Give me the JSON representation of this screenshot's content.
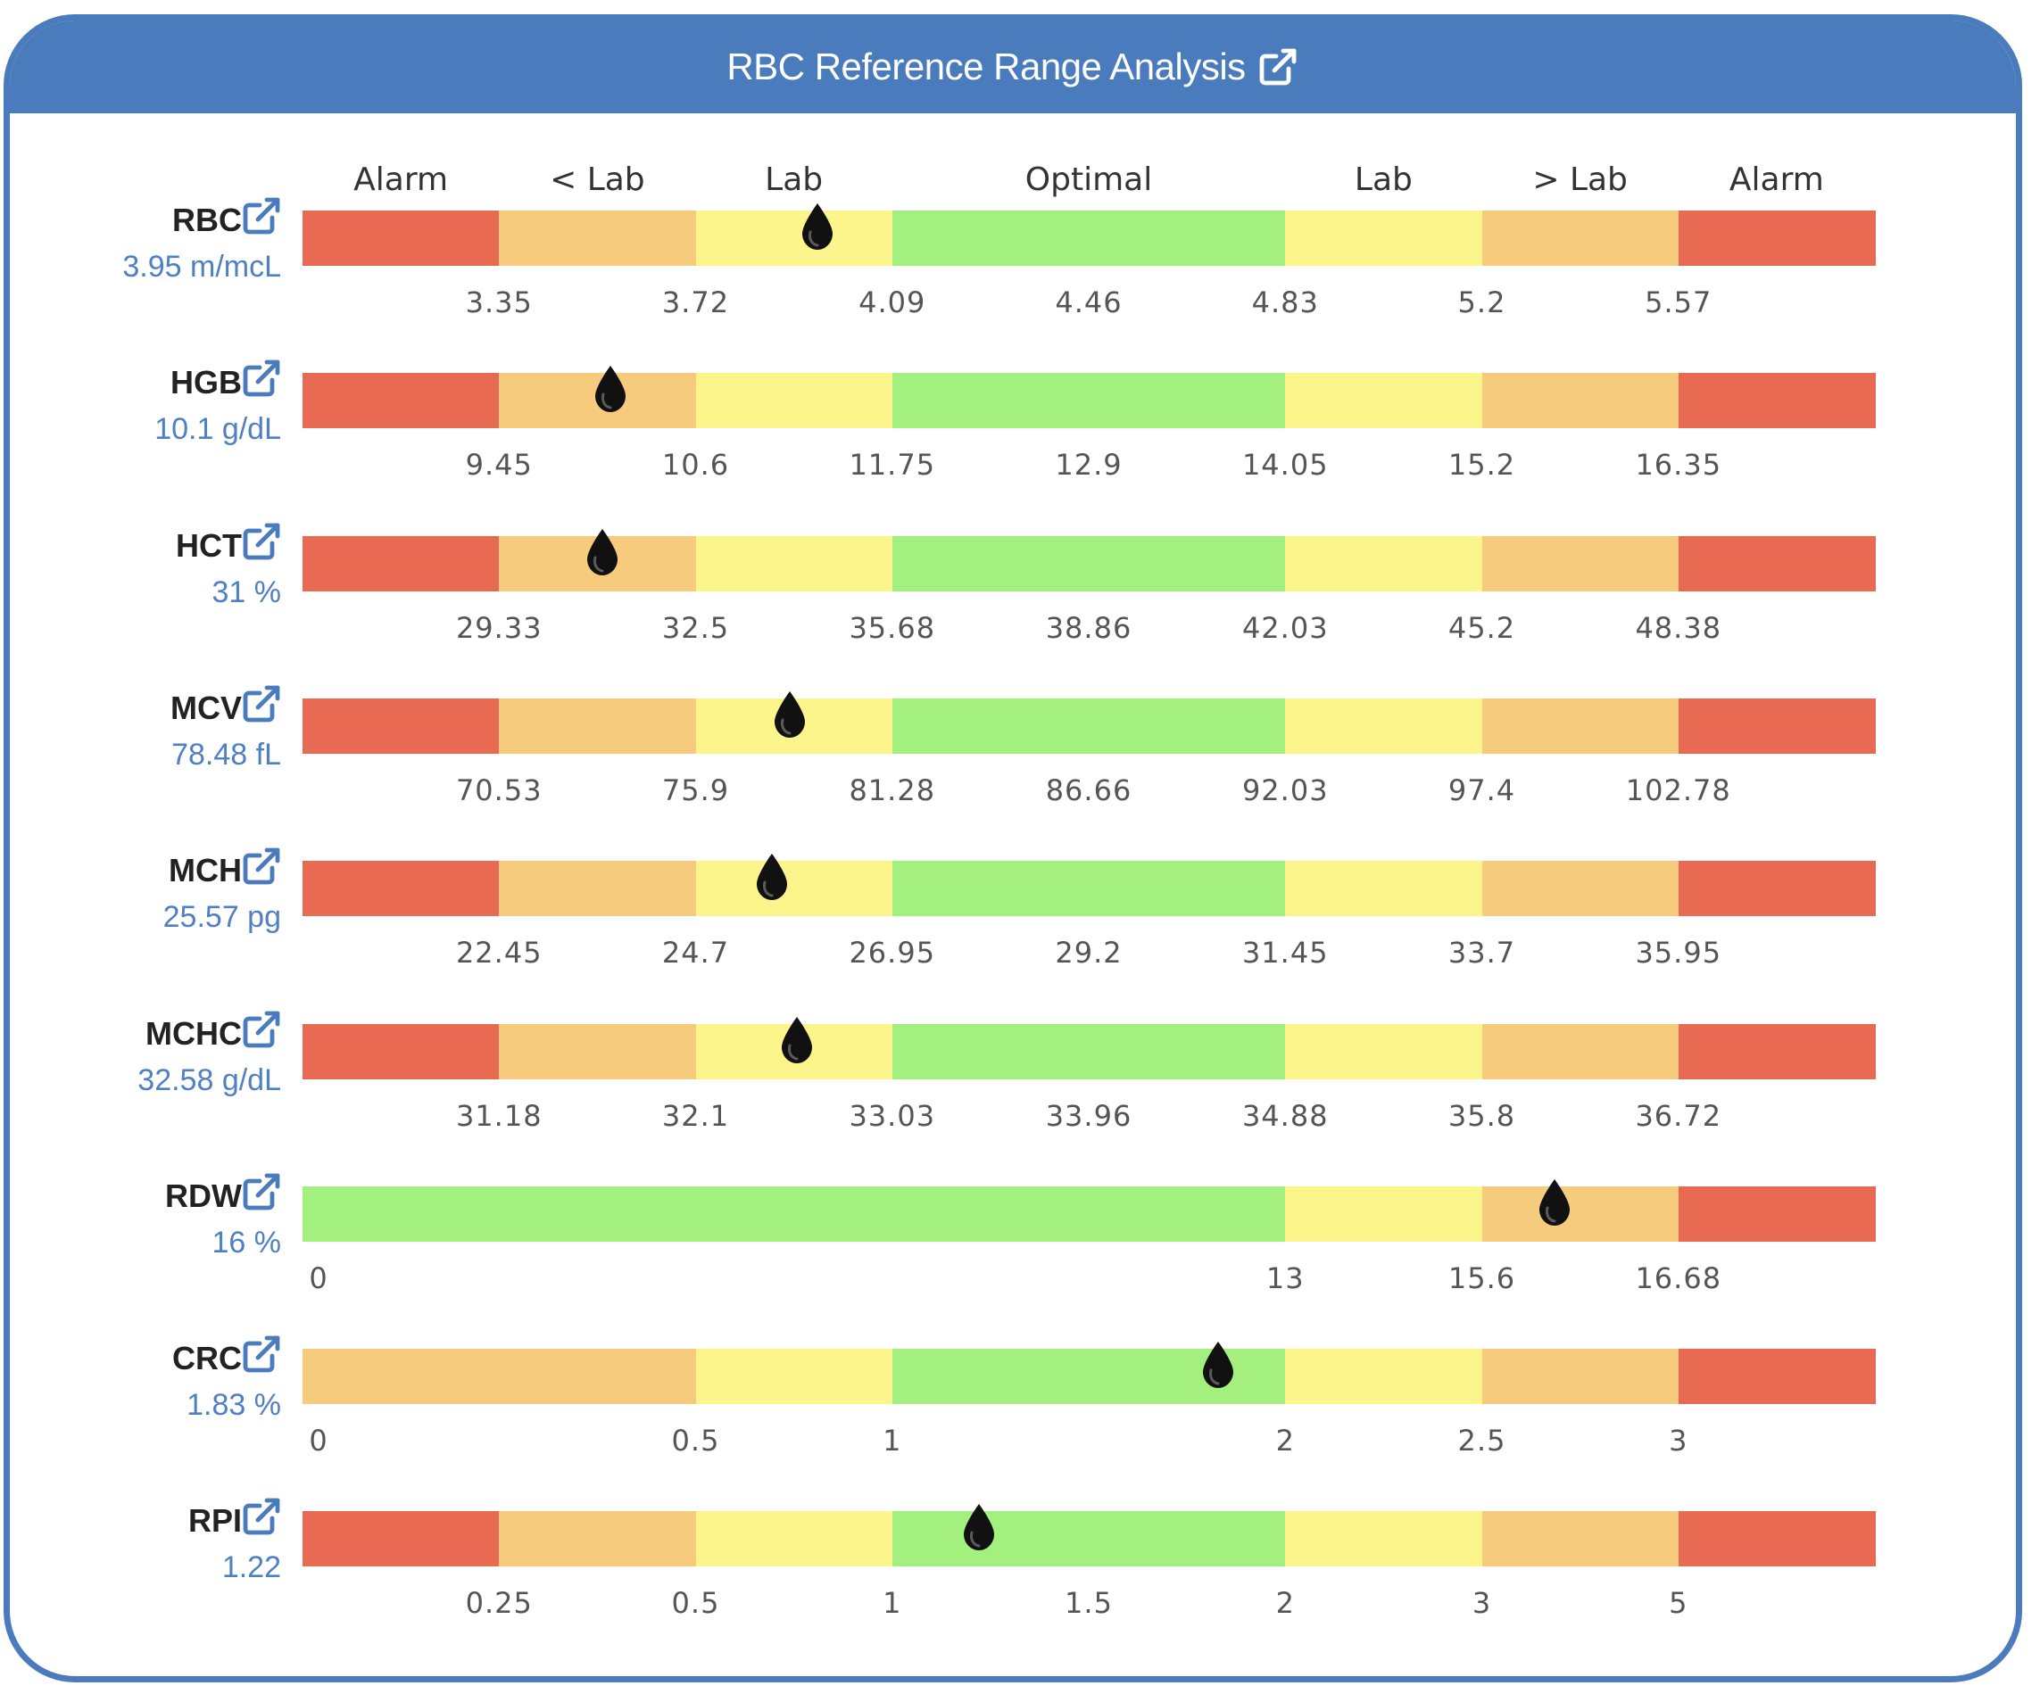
{
  "header": {
    "title": "RBC Reference Range Analysis",
    "link_icon": "external-link-icon"
  },
  "colors": {
    "alarm": "#e96a53",
    "below_lab": "#f6cb7e",
    "lab": "#fcf58c",
    "optimal": "#a3f07e",
    "accent": "#4a7bbd",
    "value_text": "#4f80c4",
    "marker": "#111111"
  },
  "chart_data": {
    "type": "bar",
    "zone_labels": [
      "Alarm",
      "< Lab",
      "Lab",
      "Optimal",
      "Lab",
      "> Lab",
      "Alarm"
    ],
    "legend": "top",
    "rows": [
      {
        "name": "RBC",
        "value_text": "3.95 m/mcL",
        "value": 3.95,
        "ticks": [
          "3.35",
          "3.72",
          "4.09",
          "4.46",
          "4.83",
          "5.2",
          "5.57"
        ],
        "tick_values": [
          3.35,
          3.72,
          4.09,
          4.46,
          4.83,
          5.2,
          5.57
        ]
      },
      {
        "name": "HGB",
        "value_text": "10.1 g/dL",
        "value": 10.1,
        "ticks": [
          "9.45",
          "10.6",
          "11.75",
          "12.9",
          "14.05",
          "15.2",
          "16.35"
        ],
        "tick_values": [
          9.45,
          10.6,
          11.75,
          12.9,
          14.05,
          15.2,
          16.35
        ]
      },
      {
        "name": "HCT",
        "value_text": "31 %",
        "value": 31,
        "ticks": [
          "29.33",
          "32.5",
          "35.68",
          "38.86",
          "42.03",
          "45.2",
          "48.38"
        ],
        "tick_values": [
          29.33,
          32.5,
          35.68,
          38.86,
          42.03,
          45.2,
          48.38
        ]
      },
      {
        "name": "MCV",
        "value_text": "78.48 fL",
        "value": 78.48,
        "ticks": [
          "70.53",
          "75.9",
          "81.28",
          "86.66",
          "92.03",
          "97.4",
          "102.78"
        ],
        "tick_values": [
          70.53,
          75.9,
          81.28,
          86.66,
          92.03,
          97.4,
          102.78
        ]
      },
      {
        "name": "MCH",
        "value_text": "25.57 pg",
        "value": 25.57,
        "ticks": [
          "22.45",
          "24.7",
          "26.95",
          "29.2",
          "31.45",
          "33.7",
          "35.95"
        ],
        "tick_values": [
          22.45,
          24.7,
          26.95,
          29.2,
          31.45,
          33.7,
          35.95
        ]
      },
      {
        "name": "MCHC",
        "value_text": "32.58 g/dL",
        "value": 32.58,
        "ticks": [
          "31.18",
          "32.1",
          "33.03",
          "33.96",
          "34.88",
          "35.8",
          "36.72"
        ],
        "tick_values": [
          31.18,
          32.1,
          33.03,
          33.96,
          34.88,
          35.8,
          36.72
        ]
      },
      {
        "name": "RDW",
        "value_text": "16 %",
        "value": 16,
        "ticks": [
          "0",
          "13",
          "15.6",
          "16.68"
        ],
        "tick_values": [
          0,
          13,
          15.6,
          16.68
        ],
        "tick_slots": [
          0,
          5,
          6,
          7
        ],
        "zones": [
          "optimal",
          "optimal",
          "optimal",
          "optimal",
          "optimal",
          "lab",
          "below_lab",
          "alarm"
        ]
      },
      {
        "name": "CRC",
        "value_text": "1.83 %",
        "value": 1.83,
        "ticks": [
          "0",
          "0.5",
          "1",
          "2",
          "2.5",
          "3"
        ],
        "tick_values": [
          0,
          0.5,
          1,
          2,
          2.5,
          3
        ],
        "tick_slots": [
          0,
          2,
          3,
          5,
          6,
          7
        ],
        "zones": [
          "below_lab",
          "below_lab",
          "lab",
          "optimal",
          "optimal",
          "lab",
          "below_lab",
          "alarm"
        ]
      },
      {
        "name": "RPI",
        "value_text": "1.22",
        "value": 1.22,
        "ticks": [
          "0.25",
          "0.5",
          "1",
          "1.5",
          "2",
          "3",
          "5"
        ],
        "tick_values": [
          0.25,
          0.5,
          1,
          1.5,
          2,
          3,
          5
        ]
      }
    ]
  }
}
